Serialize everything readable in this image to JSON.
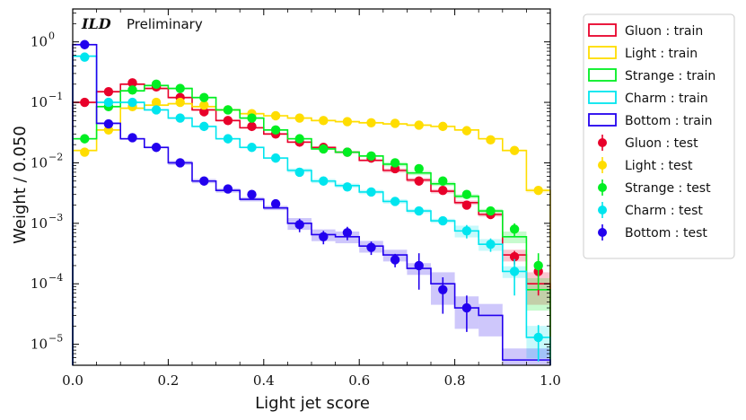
{
  "chart_data": {
    "type": "histogram",
    "title": "",
    "badge": {
      "experiment": "ILD",
      "status": "Preliminary"
    },
    "xlabel": "Light jet score",
    "ylabel": "Weight / 0.050",
    "xlim": [
      0.0,
      1.0
    ],
    "ylim": [
      4.5e-06,
      3.5
    ],
    "yscale": "log",
    "bin_edges": [
      0.0,
      0.05,
      0.1,
      0.15,
      0.2,
      0.25,
      0.3,
      0.35,
      0.4,
      0.45,
      0.5,
      0.55,
      0.6,
      0.65,
      0.7,
      0.75,
      0.8,
      0.85,
      0.9,
      0.95,
      1.0
    ],
    "bin_centers": [
      0.025,
      0.075,
      0.125,
      0.175,
      0.225,
      0.275,
      0.325,
      0.375,
      0.425,
      0.475,
      0.525,
      0.575,
      0.625,
      0.675,
      0.725,
      0.775,
      0.825,
      0.875,
      0.925,
      0.975
    ],
    "x_ticks": [
      {
        "value": 0.0,
        "label": "0.0"
      },
      {
        "value": 0.2,
        "label": "0.2"
      },
      {
        "value": 0.4,
        "label": "0.4"
      },
      {
        "value": 0.6,
        "label": "0.6"
      },
      {
        "value": 0.8,
        "label": "0.8"
      },
      {
        "value": 1.0,
        "label": "1.0"
      }
    ],
    "y_ticks": [
      {
        "value": 1,
        "base": "10",
        "exp": "0"
      },
      {
        "value": 0.1,
        "base": "10",
        "exp": "−1"
      },
      {
        "value": 0.01,
        "base": "10",
        "exp": "−2"
      },
      {
        "value": 0.001,
        "base": "10",
        "exp": "−3"
      },
      {
        "value": 0.0001,
        "base": "10",
        "exp": "−4"
      },
      {
        "value": 1e-05,
        "base": "10",
        "exp": "−5"
      }
    ],
    "legend_position": "outside-right",
    "series": [
      {
        "name": "Gluon",
        "color": "#e8002a",
        "train_label": "Gluon : train",
        "test_label": "Gluon : test",
        "train": [
          0.1,
          0.15,
          0.2,
          0.17,
          0.12,
          0.075,
          0.05,
          0.038,
          0.03,
          0.022,
          0.018,
          0.015,
          0.011,
          0.0075,
          0.0052,
          0.0034,
          0.0022,
          0.0014,
          0.0003,
          0.0001
        ],
        "test": [
          0.1,
          0.15,
          0.21,
          0.18,
          0.12,
          0.07,
          0.05,
          0.04,
          0.03,
          0.022,
          0.018,
          0.015,
          0.012,
          0.008,
          0.005,
          0.0035,
          0.002,
          0.0014,
          0.00028,
          0.00016
        ]
      },
      {
        "name": "Light",
        "color": "#ffdd00",
        "train_label": "Light : train",
        "test_label": "Light : test",
        "train": [
          0.016,
          0.035,
          0.08,
          0.09,
          0.095,
          0.085,
          0.075,
          0.065,
          0.06,
          0.055,
          0.05,
          0.048,
          0.046,
          0.044,
          0.042,
          0.04,
          0.035,
          0.025,
          0.016,
          0.0035
        ],
        "test": [
          0.015,
          0.035,
          0.085,
          0.1,
          0.1,
          0.09,
          0.075,
          0.065,
          0.06,
          0.055,
          0.05,
          0.048,
          0.046,
          0.045,
          0.042,
          0.04,
          0.034,
          0.024,
          0.016,
          0.0035
        ]
      },
      {
        "name": "Strange",
        "color": "#00ee22",
        "train_label": "Strange : train",
        "test_label": "Strange : test",
        "train": [
          0.025,
          0.085,
          0.155,
          0.19,
          0.17,
          0.12,
          0.075,
          0.055,
          0.035,
          0.025,
          0.017,
          0.015,
          0.013,
          0.0095,
          0.0068,
          0.0045,
          0.0028,
          0.0016,
          0.0006,
          8e-05
        ],
        "test": [
          0.025,
          0.085,
          0.16,
          0.2,
          0.17,
          0.12,
          0.075,
          0.055,
          0.035,
          0.025,
          0.017,
          0.015,
          0.013,
          0.01,
          0.008,
          0.005,
          0.003,
          0.0016,
          0.0008,
          0.0002
        ]
      },
      {
        "name": "Charm",
        "color": "#00e5ee",
        "train_label": "Charm : train",
        "test_label": "Charm : test",
        "train": [
          0.58,
          0.1,
          0.1,
          0.075,
          0.055,
          0.04,
          0.025,
          0.018,
          0.012,
          0.0075,
          0.005,
          0.0042,
          0.0033,
          0.0023,
          0.0016,
          0.0011,
          0.00075,
          0.00045,
          0.00016,
          1.3e-05
        ],
        "test": [
          0.56,
          0.1,
          0.1,
          0.075,
          0.055,
          0.04,
          0.025,
          0.018,
          0.012,
          0.007,
          0.005,
          0.004,
          0.0033,
          0.0023,
          0.0016,
          0.0011,
          0.00075,
          0.00045,
          0.00016,
          1.3e-05
        ]
      },
      {
        "name": "Bottom",
        "color": "#2200ee",
        "train_label": "Bottom : train",
        "test_label": "Bottom : test",
        "train": [
          0.9,
          0.045,
          0.025,
          0.018,
          0.01,
          0.005,
          0.0035,
          0.0025,
          0.0018,
          0.001,
          0.00065,
          0.0006,
          0.00042,
          0.0003,
          0.00018,
          0.0001,
          4e-05,
          3e-05,
          5.5e-06,
          5.5e-06
        ],
        "test": [
          0.9,
          0.044,
          0.026,
          0.018,
          0.01,
          0.005,
          0.0037,
          0.003,
          0.0021,
          0.00095,
          0.0006,
          0.0007,
          0.0004,
          0.00025,
          0.0002,
          8e-05,
          4e-05,
          null,
          null,
          null
        ]
      }
    ]
  }
}
